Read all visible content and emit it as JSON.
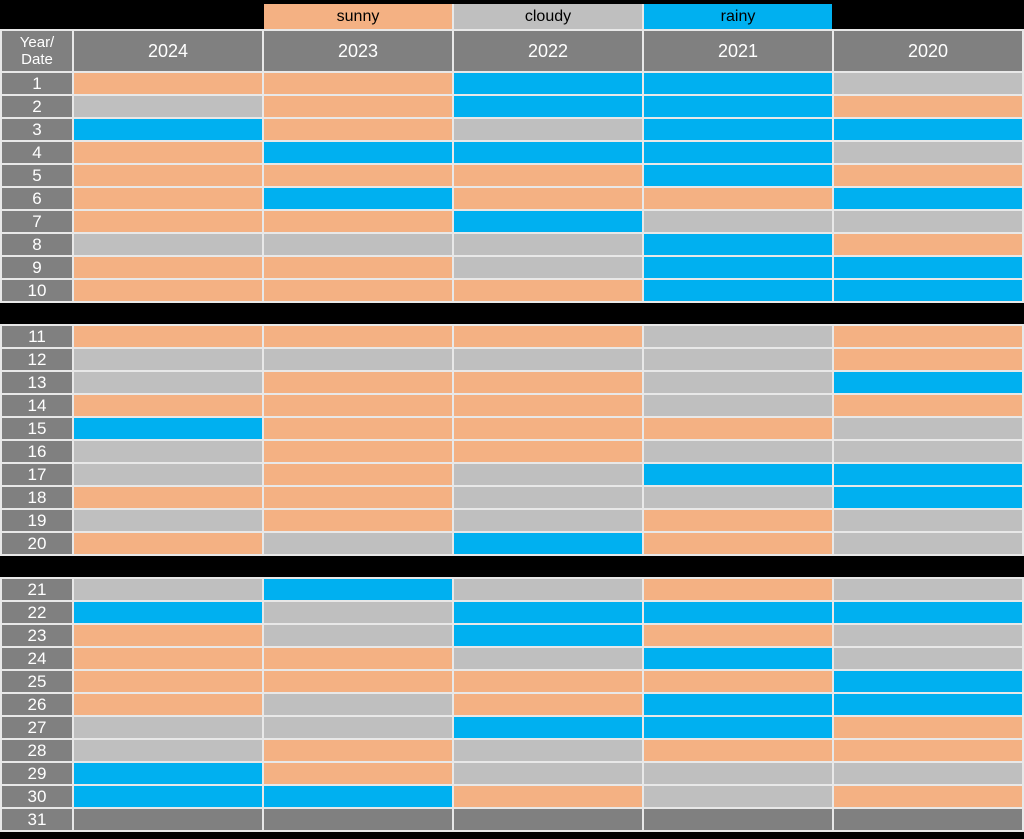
{
  "page": {
    "background": "#000000"
  },
  "colors": {
    "sunny": "#F4B183",
    "cloudy": "#BFBFBF",
    "rainy": "#00B0F0",
    "empty": "#808080",
    "header_bg": "#808080",
    "grid_line": "#E8E8E8",
    "header_text": "#FFFFFF",
    "legend_text": "#000000"
  },
  "legend": {
    "items": [
      {
        "key": "sunny",
        "label": "sunny"
      },
      {
        "key": "cloudy",
        "label": "cloudy"
      },
      {
        "key": "rainy",
        "label": "rainy"
      }
    ]
  },
  "header": {
    "corner_line1": "Year/",
    "corner_line2": "Date",
    "years": [
      "2024",
      "2023",
      "2022",
      "2021",
      "2020"
    ]
  },
  "chart_data": {
    "type": "table",
    "row_label": "Date",
    "columns": [
      "2024",
      "2023",
      "2022",
      "2021",
      "2020"
    ],
    "legend": [
      "sunny",
      "cloudy",
      "rainy"
    ],
    "blocks": [
      [
        1,
        10
      ],
      [
        11,
        20
      ],
      [
        21,
        31
      ]
    ],
    "rows": [
      {
        "date": "1",
        "values": [
          "sunny",
          "sunny",
          "rainy",
          "rainy",
          "cloudy"
        ]
      },
      {
        "date": "2",
        "values": [
          "cloudy",
          "sunny",
          "rainy",
          "rainy",
          "sunny"
        ]
      },
      {
        "date": "3",
        "values": [
          "rainy",
          "sunny",
          "cloudy",
          "rainy",
          "rainy"
        ]
      },
      {
        "date": "4",
        "values": [
          "sunny",
          "rainy",
          "rainy",
          "rainy",
          "cloudy"
        ]
      },
      {
        "date": "5",
        "values": [
          "sunny",
          "sunny",
          "sunny",
          "rainy",
          "sunny"
        ]
      },
      {
        "date": "6",
        "values": [
          "sunny",
          "rainy",
          "sunny",
          "sunny",
          "rainy"
        ]
      },
      {
        "date": "7",
        "values": [
          "sunny",
          "sunny",
          "rainy",
          "cloudy",
          "cloudy"
        ]
      },
      {
        "date": "8",
        "values": [
          "cloudy",
          "cloudy",
          "cloudy",
          "rainy",
          "sunny"
        ]
      },
      {
        "date": "9",
        "values": [
          "sunny",
          "sunny",
          "cloudy",
          "rainy",
          "rainy"
        ]
      },
      {
        "date": "10",
        "values": [
          "sunny",
          "sunny",
          "sunny",
          "rainy",
          "rainy"
        ]
      },
      {
        "date": "11",
        "values": [
          "sunny",
          "sunny",
          "sunny",
          "cloudy",
          "sunny"
        ]
      },
      {
        "date": "12",
        "values": [
          "cloudy",
          "cloudy",
          "cloudy",
          "cloudy",
          "sunny"
        ]
      },
      {
        "date": "13",
        "values": [
          "cloudy",
          "sunny",
          "sunny",
          "cloudy",
          "rainy"
        ]
      },
      {
        "date": "14",
        "values": [
          "sunny",
          "sunny",
          "sunny",
          "cloudy",
          "sunny"
        ]
      },
      {
        "date": "15",
        "values": [
          "rainy",
          "sunny",
          "sunny",
          "sunny",
          "cloudy"
        ]
      },
      {
        "date": "16",
        "values": [
          "cloudy",
          "sunny",
          "sunny",
          "cloudy",
          "cloudy"
        ]
      },
      {
        "date": "17",
        "values": [
          "cloudy",
          "sunny",
          "cloudy",
          "rainy",
          "rainy"
        ]
      },
      {
        "date": "18",
        "values": [
          "sunny",
          "sunny",
          "cloudy",
          "cloudy",
          "rainy"
        ]
      },
      {
        "date": "19",
        "values": [
          "cloudy",
          "sunny",
          "cloudy",
          "sunny",
          "cloudy"
        ]
      },
      {
        "date": "20",
        "values": [
          "sunny",
          "cloudy",
          "rainy",
          "sunny",
          "cloudy"
        ]
      },
      {
        "date": "21",
        "values": [
          "cloudy",
          "rainy",
          "cloudy",
          "sunny",
          "cloudy"
        ]
      },
      {
        "date": "22",
        "values": [
          "rainy",
          "cloudy",
          "rainy",
          "rainy",
          "rainy"
        ]
      },
      {
        "date": "23",
        "values": [
          "sunny",
          "cloudy",
          "rainy",
          "sunny",
          "cloudy"
        ]
      },
      {
        "date": "24",
        "values": [
          "sunny",
          "sunny",
          "cloudy",
          "rainy",
          "cloudy"
        ]
      },
      {
        "date": "25",
        "values": [
          "sunny",
          "sunny",
          "sunny",
          "sunny",
          "rainy"
        ]
      },
      {
        "date": "26",
        "values": [
          "sunny",
          "cloudy",
          "sunny",
          "rainy",
          "rainy"
        ]
      },
      {
        "date": "27",
        "values": [
          "cloudy",
          "cloudy",
          "rainy",
          "rainy",
          "sunny"
        ]
      },
      {
        "date": "28",
        "values": [
          "cloudy",
          "sunny",
          "cloudy",
          "sunny",
          "sunny"
        ]
      },
      {
        "date": "29",
        "values": [
          "rainy",
          "sunny",
          "cloudy",
          "cloudy",
          "cloudy"
        ]
      },
      {
        "date": "30",
        "values": [
          "rainy",
          "rainy",
          "sunny",
          "cloudy",
          "sunny"
        ]
      },
      {
        "date": "31",
        "values": [
          "",
          "",
          "",
          "",
          ""
        ]
      }
    ]
  }
}
